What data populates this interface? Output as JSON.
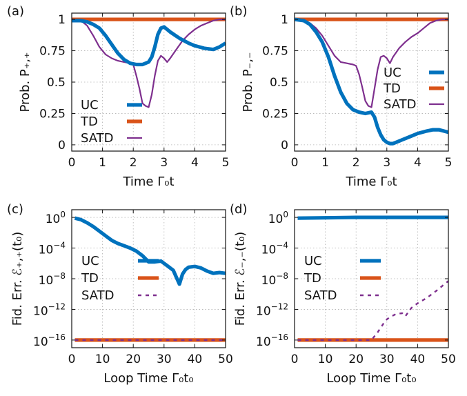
{
  "chart_data": [
    {
      "panel_label": "(a)",
      "type": "line",
      "xlabel": "Time Γ₀t",
      "ylabel": "Prob. P₊,₊",
      "xlim": [
        0,
        5
      ],
      "ylim": [
        -0.05,
        1.05
      ],
      "xscale": "linear",
      "yscale": "linear",
      "x_ticks": [
        0,
        1,
        2,
        3,
        4,
        5
      ],
      "x_tick_labels": [
        "0",
        "1",
        "2",
        "3",
        "4",
        "5"
      ],
      "y_ticks": [
        0,
        0.25,
        0.5,
        0.75,
        1
      ],
      "y_tick_labels": [
        "0",
        "0.25",
        "0.5",
        "0.75",
        "1"
      ],
      "grid": true,
      "legend_position": "bottom-left",
      "series": [
        {
          "name": "UC",
          "color": "#0072bd",
          "style": "thick",
          "x": [
            0,
            0.3,
            0.5,
            0.7,
            0.9,
            1.1,
            1.3,
            1.5,
            1.7,
            1.9,
            2.1,
            2.3,
            2.5,
            2.6,
            2.7,
            2.8,
            2.9,
            3.0,
            3.2,
            3.5,
            3.8,
            4.0,
            4.3,
            4.6,
            4.8,
            5.0
          ],
          "y": [
            0.99,
            0.99,
            0.98,
            0.96,
            0.93,
            0.87,
            0.8,
            0.73,
            0.68,
            0.65,
            0.64,
            0.64,
            0.66,
            0.7,
            0.78,
            0.88,
            0.93,
            0.94,
            0.9,
            0.85,
            0.81,
            0.79,
            0.77,
            0.76,
            0.78,
            0.81
          ]
        },
        {
          "name": "TD",
          "color": "#d95319",
          "style": "thick",
          "x": [
            0,
            5
          ],
          "y": [
            1,
            1
          ]
        },
        {
          "name": "SATD",
          "color": "#7e2f8e",
          "style": "thin",
          "x": [
            0,
            0.3,
            0.5,
            0.7,
            0.9,
            1.1,
            1.3,
            1.5,
            1.7,
            1.9,
            2.0,
            2.1,
            2.2,
            2.3,
            2.4,
            2.5,
            2.6,
            2.7,
            2.8,
            2.9,
            3.0,
            3.1,
            3.2,
            3.4,
            3.6,
            3.8,
            4.0,
            4.2,
            4.4,
            4.6,
            4.8,
            5.0
          ],
          "y": [
            1.0,
            0.99,
            0.95,
            0.87,
            0.78,
            0.72,
            0.69,
            0.67,
            0.66,
            0.65,
            0.64,
            0.55,
            0.45,
            0.33,
            0.31,
            0.3,
            0.4,
            0.55,
            0.67,
            0.71,
            0.69,
            0.66,
            0.69,
            0.76,
            0.83,
            0.88,
            0.92,
            0.95,
            0.97,
            0.99,
            1.0,
            1.0
          ]
        }
      ]
    },
    {
      "panel_label": "(b)",
      "type": "line",
      "xlabel": "Time Γ₀t",
      "ylabel": "Prob. P₋,₋",
      "xlim": [
        0,
        5
      ],
      "ylim": [
        -0.05,
        1.05
      ],
      "xscale": "linear",
      "yscale": "linear",
      "x_ticks": [
        0,
        1,
        2,
        3,
        4,
        5
      ],
      "x_tick_labels": [
        "0",
        "1",
        "2",
        "3",
        "4",
        "5"
      ],
      "y_ticks": [
        0,
        0.25,
        0.5,
        0.75,
        1
      ],
      "y_tick_labels": [
        "0",
        "0.25",
        "0.5",
        "0.75",
        "1"
      ],
      "grid": true,
      "legend_position": "center-right",
      "series": [
        {
          "name": "UC",
          "color": "#0072bd",
          "style": "thick",
          "x": [
            0,
            0.3,
            0.5,
            0.7,
            0.9,
            1.1,
            1.3,
            1.5,
            1.7,
            1.9,
            2.1,
            2.3,
            2.5,
            2.6,
            2.7,
            2.8,
            2.9,
            3.0,
            3.1,
            3.2,
            3.3,
            3.5,
            3.8,
            4.0,
            4.3,
            4.5,
            4.7,
            5.0
          ],
          "y": [
            1.0,
            0.99,
            0.96,
            0.9,
            0.82,
            0.7,
            0.55,
            0.42,
            0.33,
            0.28,
            0.26,
            0.25,
            0.26,
            0.22,
            0.14,
            0.08,
            0.04,
            0.02,
            0.01,
            0.01,
            0.02,
            0.04,
            0.07,
            0.09,
            0.11,
            0.12,
            0.12,
            0.1
          ]
        },
        {
          "name": "TD",
          "color": "#d95319",
          "style": "thick",
          "x": [
            0,
            5
          ],
          "y": [
            1,
            1
          ]
        },
        {
          "name": "SATD",
          "color": "#7e2f8e",
          "style": "thin",
          "x": [
            0,
            0.3,
            0.5,
            0.7,
            0.9,
            1.1,
            1.3,
            1.5,
            1.7,
            1.9,
            2.0,
            2.1,
            2.2,
            2.3,
            2.4,
            2.5,
            2.6,
            2.7,
            2.8,
            2.9,
            3.0,
            3.1,
            3.2,
            3.4,
            3.6,
            3.8,
            4.0,
            4.2,
            4.4,
            4.6,
            4.8,
            5.0
          ],
          "y": [
            1.0,
            0.99,
            0.97,
            0.93,
            0.87,
            0.79,
            0.71,
            0.66,
            0.65,
            0.64,
            0.63,
            0.56,
            0.46,
            0.35,
            0.31,
            0.3,
            0.45,
            0.6,
            0.7,
            0.71,
            0.69,
            0.65,
            0.7,
            0.77,
            0.82,
            0.86,
            0.89,
            0.93,
            0.97,
            0.99,
            1.0,
            1.0
          ]
        }
      ]
    },
    {
      "panel_label": "(c)",
      "type": "line",
      "xlabel": "Loop Time Γ₀t₀",
      "ylabel": "Fid. Err. ℰ₊,₊(t₀)",
      "xlim": [
        0,
        50
      ],
      "ylim": [
        -17,
        1
      ],
      "xscale": "linear",
      "yscale": "log",
      "x_ticks": [
        0,
        10,
        20,
        30,
        40,
        50
      ],
      "x_tick_labels": [
        "0",
        "10",
        "20",
        "30",
        "40",
        "50"
      ],
      "y_ticks": [
        0,
        -4,
        -8,
        -12,
        -16
      ],
      "y_tick_labels": [
        [
          "10",
          "0"
        ],
        [
          "10",
          "−4"
        ],
        [
          "10",
          "−8"
        ],
        [
          "10",
          "−12"
        ],
        [
          "10",
          "−16"
        ]
      ],
      "grid": true,
      "legend_position": "center-left",
      "series": [
        {
          "name": "UC",
          "color": "#0072bd",
          "style": "thick",
          "y_unit": "log10",
          "x": [
            1,
            3,
            5,
            7,
            9,
            11,
            13,
            15,
            17,
            19,
            21,
            23,
            25,
            27,
            29,
            31,
            33,
            34,
            35,
            36,
            37,
            38,
            40,
            42,
            44,
            46,
            48,
            50
          ],
          "y": [
            -0.1,
            -0.3,
            -0.7,
            -1.2,
            -1.8,
            -2.4,
            -3.0,
            -3.4,
            -3.7,
            -4.0,
            -4.4,
            -5.0,
            -5.8,
            -5.8,
            -5.7,
            -6.3,
            -6.9,
            -7.8,
            -8.7,
            -7.4,
            -6.8,
            -6.5,
            -6.4,
            -6.6,
            -7.0,
            -7.3,
            -7.2,
            -7.3
          ]
        },
        {
          "name": "TD",
          "color": "#d95319",
          "style": "thick",
          "y_unit": "log10",
          "x": [
            1,
            50
          ],
          "y": [
            -16,
            -16
          ]
        },
        {
          "name": "SATD",
          "color": "#7e2f8e",
          "style": "dashed",
          "y_unit": "log10",
          "x": [
            1,
            50
          ],
          "y": [
            -16,
            -16
          ]
        }
      ]
    },
    {
      "panel_label": "(d)",
      "type": "line",
      "xlabel": "Loop Time Γ₀t₀",
      "ylabel": "Fid. Err. ℰ₋,₋(t₀)",
      "xlim": [
        0,
        50
      ],
      "ylim": [
        -17,
        1
      ],
      "xscale": "linear",
      "yscale": "log",
      "x_ticks": [
        0,
        10,
        20,
        30,
        40,
        50
      ],
      "x_tick_labels": [
        "0",
        "10",
        "20",
        "30",
        "40",
        "50"
      ],
      "y_ticks": [
        0,
        -4,
        -8,
        -12,
        -16
      ],
      "y_tick_labels": [
        [
          "10",
          "0"
        ],
        [
          "10",
          "−4"
        ],
        [
          "10",
          "−8"
        ],
        [
          "10",
          "−12"
        ],
        [
          "10",
          "−16"
        ]
      ],
      "grid": true,
      "legend_position": "center-left",
      "series": [
        {
          "name": "UC",
          "color": "#0072bd",
          "style": "thick",
          "y_unit": "log10",
          "x": [
            1,
            10,
            20,
            30,
            40,
            50
          ],
          "y": [
            -0.1,
            -0.05,
            0,
            0,
            0,
            0
          ]
        },
        {
          "name": "TD",
          "color": "#d95319",
          "style": "thick",
          "y_unit": "log10",
          "x": [
            1,
            50
          ],
          "y": [
            -16,
            -16
          ]
        },
        {
          "name": "SATD",
          "color": "#7e2f8e",
          "style": "dashed",
          "y_unit": "log10",
          "x": [
            1,
            10,
            20,
            25,
            27,
            29,
            30,
            31,
            33,
            35,
            36,
            38,
            40,
            43,
            46,
            50
          ],
          "y": [
            -16,
            -16,
            -16,
            -16,
            -15,
            -13.8,
            -13.3,
            -13.0,
            -12.6,
            -12.5,
            -12.9,
            -11.8,
            -11.2,
            -10.5,
            -9.6,
            -8.3
          ]
        }
      ]
    }
  ]
}
